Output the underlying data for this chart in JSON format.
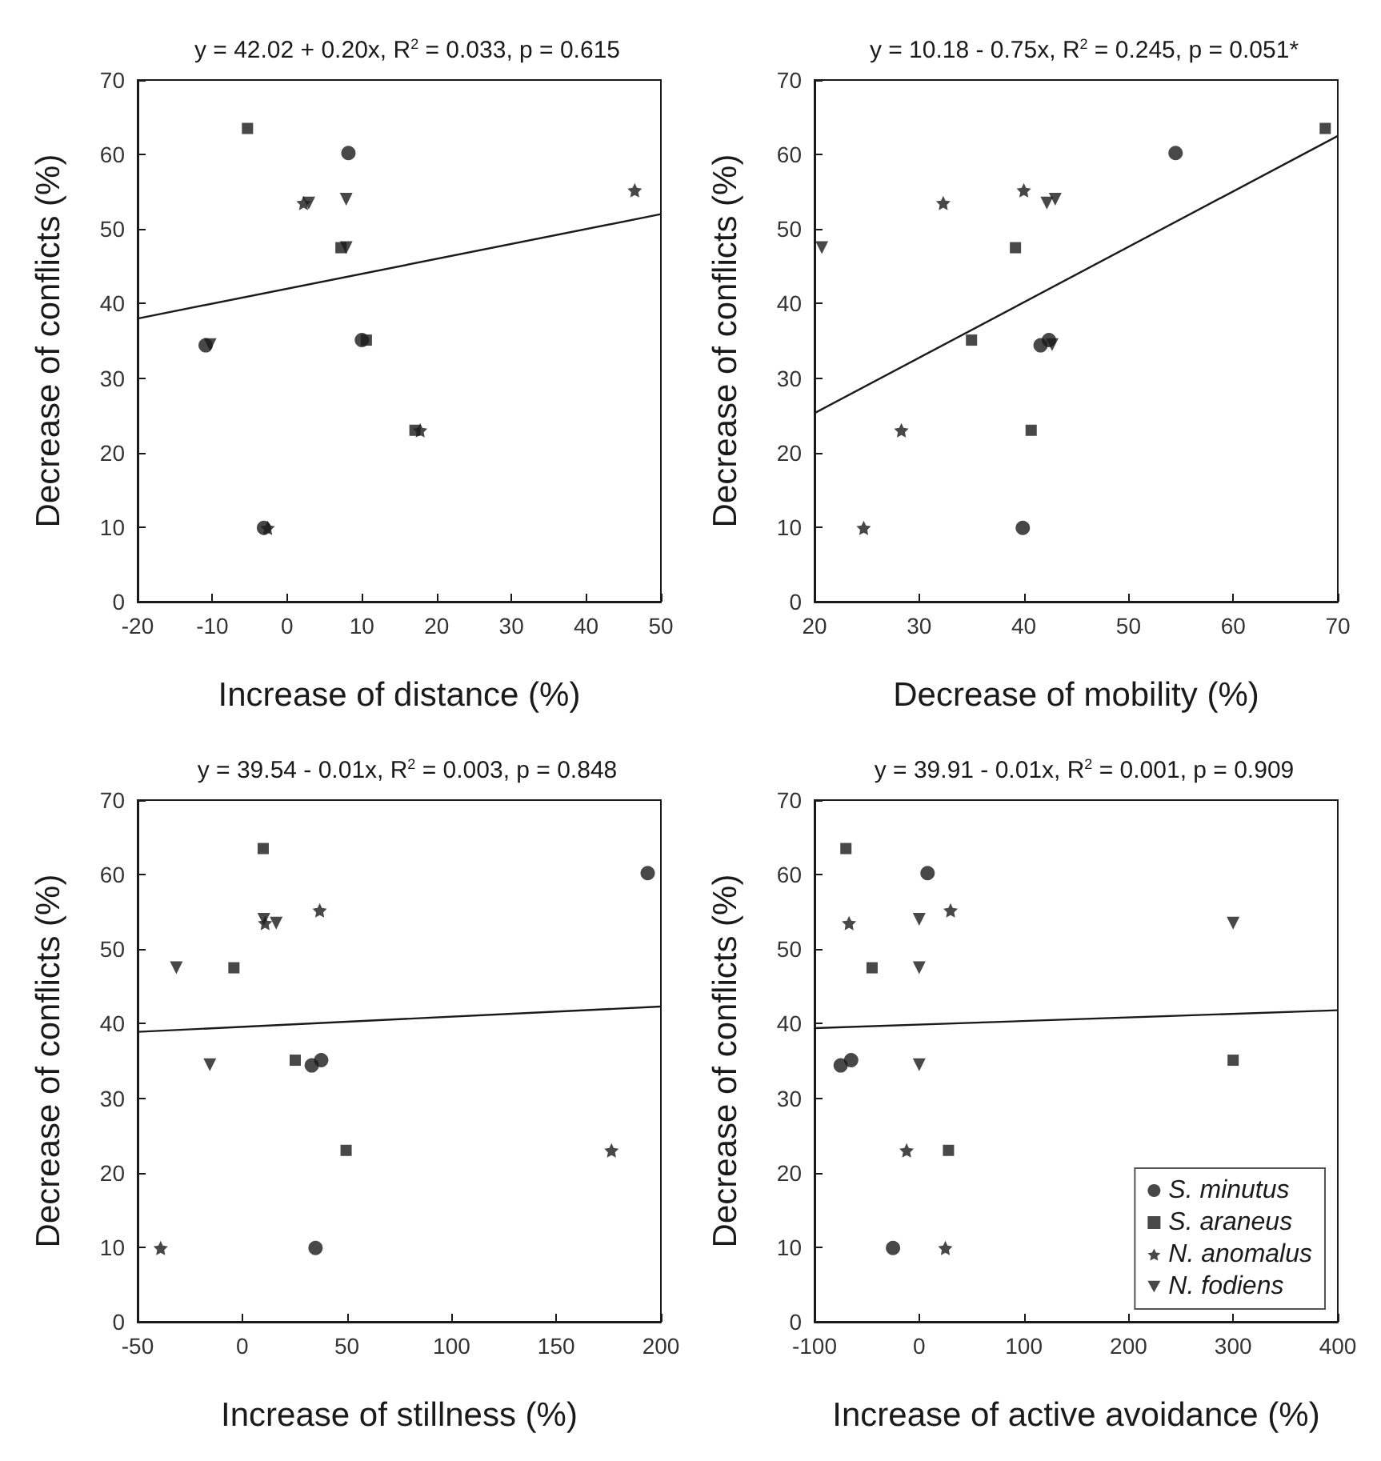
{
  "chart_data": [
    {
      "type": "scatter",
      "title": "y = 42.02 + 0.20x, R$^{2}$ = 0.033, p = 0.615",
      "xlabel": "Increase of distance (%)",
      "ylabel": "Decrease of conflicts (%)",
      "xlim": [
        -20,
        50
      ],
      "xticks": [
        -20,
        -10,
        0,
        10,
        20,
        30,
        40,
        50
      ],
      "ylim": [
        0,
        70
      ],
      "yticks": [
        0,
        10,
        20,
        30,
        40,
        50,
        60,
        70
      ],
      "legend": false,
      "series": [
        {
          "color": "#1a1a1a",
          "marker": "circle",
          "x": [
            8.2,
            -10.9,
            10,
            -3.1
          ],
          "values": [
            60.2,
            34.4,
            35.1,
            9.9
          ]
        },
        {
          "color": "#1a1a1a",
          "marker": "square",
          "x": [
            -5.3,
            7.2,
            10.6,
            17.1
          ],
          "values": [
            63.5,
            47.5,
            35.1,
            23
          ]
        },
        {
          "color": "#1a1a1a",
          "marker": "star",
          "x": [
            46.5,
            2.2,
            17.8,
            -2.6
          ],
          "values": [
            55.2,
            53.5,
            23,
            9.9
          ]
        },
        {
          "color": "#1a1a1a",
          "marker": "triangle",
          "x": [
            7.9,
            2.9,
            7.9,
            -10.3
          ],
          "values": [
            54,
            53.5,
            47.5,
            34.5
          ]
        },
        {
          "type": "line",
          "color": "#1a1a1a",
          "marker": "none",
          "x": [
            -20,
            50
          ],
          "values": [
            38,
            52
          ]
        }
      ]
    },
    {
      "type": "scatter",
      "title": "y = 10.18 - 0.75x, R$^{2}$ = 0.245, p = 0.051*",
      "xlabel": "Decrease of mobility (%)",
      "ylabel": "Decrease of conflicts (%)",
      "xlim": [
        20,
        70
      ],
      "xticks": [
        20,
        30,
        40,
        50,
        60,
        70
      ],
      "ylim": [
        0,
        70
      ],
      "yticks": [
        0,
        10,
        20,
        30,
        40,
        50,
        60,
        70
      ],
      "legend": false,
      "series": [
        {
          "color": "#1a1a1a",
          "marker": "circle",
          "x": [
            54.5,
            41.6,
            42.4,
            39.9
          ],
          "values": [
            60.2,
            34.4,
            35.1,
            9.9
          ]
        },
        {
          "color": "#1a1a1a",
          "marker": "square",
          "x": [
            68.8,
            39.2,
            35,
            40.7
          ],
          "values": [
            63.5,
            47.5,
            35.1,
            23
          ]
        },
        {
          "color": "#1a1a1a",
          "marker": "star",
          "x": [
            40,
            32.3,
            28.3,
            24.7
          ],
          "values": [
            55.2,
            53.5,
            23,
            9.9
          ]
        },
        {
          "color": "#1a1a1a",
          "marker": "triangle",
          "x": [
            20.7,
            42.2,
            43,
            42.7
          ],
          "values": [
            47.5,
            53.5,
            54,
            34.5
          ]
        },
        {
          "type": "line",
          "color": "#1a1a1a",
          "marker": "none",
          "x": [
            20,
            70
          ],
          "values": [
            25.3,
            62.5
          ]
        }
      ]
    },
    {
      "type": "scatter",
      "title": "y = 39.54 - 0.01x, R$^{2}$ = 0.003, p = 0.848",
      "xlabel": "Increase of stillness (%)",
      "ylabel": "Decrease of conflicts (%)",
      "xlim": [
        -50,
        200
      ],
      "xticks": [
        -50,
        0,
        50,
        100,
        150,
        200
      ],
      "ylim": [
        0,
        70
      ],
      "yticks": [
        0,
        10,
        20,
        30,
        40,
        50,
        60,
        70
      ],
      "legend": false,
      "series": [
        {
          "color": "#1a1a1a",
          "marker": "circle",
          "x": [
            193.7,
            37.7,
            33.2,
            35
          ],
          "values": [
            60.2,
            35.1,
            34.4,
            9.9
          ]
        },
        {
          "color": "#1a1a1a",
          "marker": "square",
          "x": [
            10,
            -4,
            25.3,
            49.6
          ],
          "values": [
            63.5,
            47.5,
            35.1,
            23
          ]
        },
        {
          "color": "#1a1a1a",
          "marker": "star",
          "x": [
            37,
            10.9,
            176.4,
            -39
          ],
          "values": [
            55.2,
            53.5,
            23,
            9.9
          ]
        },
        {
          "color": "#1a1a1a",
          "marker": "triangle",
          "x": [
            10.3,
            16.2,
            -31.5,
            -15.5
          ],
          "values": [
            54,
            53.5,
            47.5,
            34.5
          ]
        },
        {
          "type": "line",
          "color": "#1a1a1a",
          "marker": "none",
          "x": [
            -50,
            200
          ],
          "values": [
            38.9,
            42.3
          ]
        }
      ]
    },
    {
      "type": "scatter",
      "title": "y = 39.91 - 0.01x, R$^{2}$ = 0.001, p = 0.909",
      "xlabel": "Increase of active avoidance (%)",
      "ylabel": "Decrease of conflicts (%)",
      "xlim": [
        -100,
        400
      ],
      "xticks": [
        -100,
        0,
        100,
        200,
        300,
        400
      ],
      "ylim": [
        0,
        70
      ],
      "yticks": [
        0,
        10,
        20,
        30,
        40,
        50,
        60,
        70
      ],
      "legend": "bottom right",
      "series": [
        {
          "name": "S. minutus",
          "color": "#1a1a1a",
          "marker": "circle",
          "x": [
            8,
            -65,
            -75,
            -25
          ],
          "values": [
            60.2,
            35.1,
            34.4,
            9.9
          ]
        },
        {
          "name": "S. araneus",
          "color": "#1a1a1a",
          "marker": "square",
          "x": [
            -70,
            -45,
            300,
            28
          ],
          "values": [
            63.5,
            47.5,
            35.1,
            23
          ]
        },
        {
          "name": "N. anomalus",
          "color": "#1a1a1a",
          "marker": "star",
          "x": [
            30,
            -67,
            -12,
            25
          ],
          "values": [
            55.2,
            53.5,
            23,
            9.9
          ]
        },
        {
          "name": "N. fodiens",
          "color": "#1a1a1a",
          "marker": "triangle",
          "x": [
            0,
            300,
            0,
            0
          ],
          "values": [
            54,
            53.5,
            47.5,
            34.5
          ]
        },
        {
          "type": "line",
          "color": "#1a1a1a",
          "marker": "none",
          "x": [
            -100,
            400
          ],
          "values": [
            39.4,
            41.8
          ]
        }
      ]
    }
  ]
}
